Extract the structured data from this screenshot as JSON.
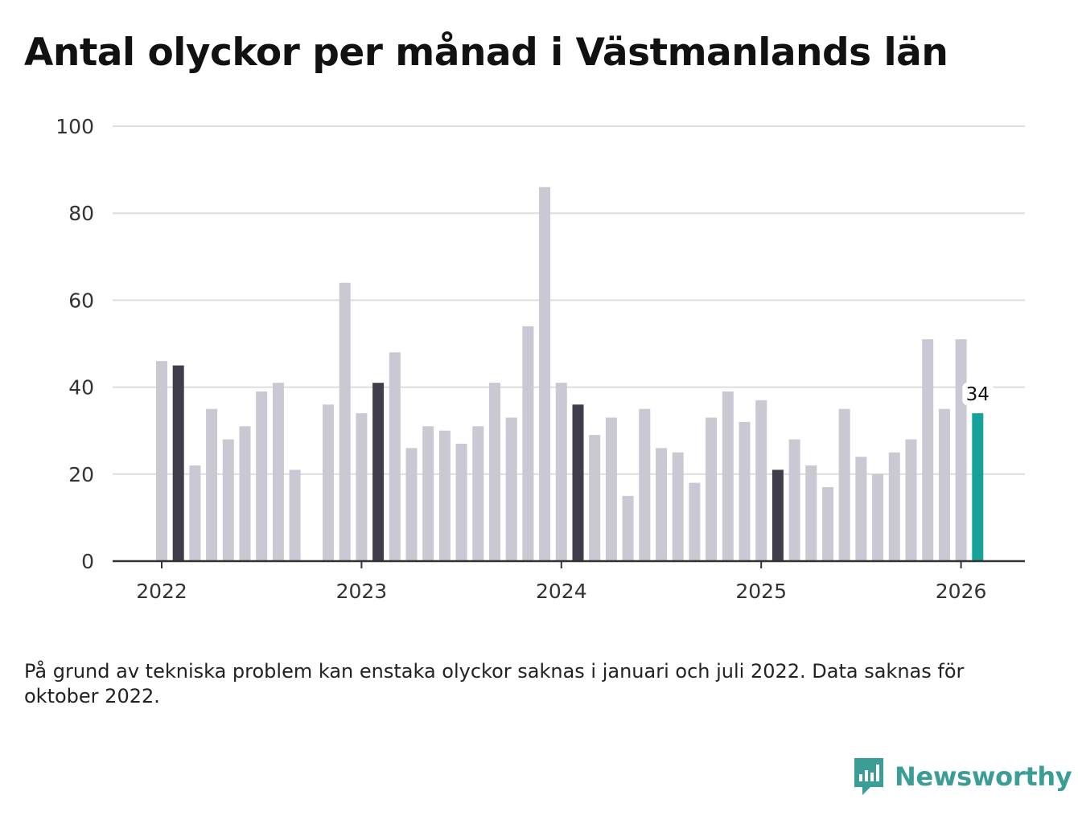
{
  "title": "Antal olyckor per månad i Västmanlands län",
  "footnote": "På grund av tekniska problem kan enstaka olyckor saknas i januari och juli 2022. Data saknas för oktober 2022.",
  "brand": {
    "name": "Newsworthy",
    "color": "#3a9e96",
    "icon": "newsworthy-logo-icon"
  },
  "colors": {
    "default": "#c9c8d3",
    "same_month": "#3f3e4a",
    "latest": "#16a19b",
    "grid": "#dddddd",
    "axis": "#333333"
  },
  "chart_data": {
    "type": "bar",
    "title": "Antal olyckor per månad i Västmanlands län",
    "xlabel": "",
    "ylabel": "",
    "ylim": [
      0,
      100
    ],
    "yticks": [
      0,
      20,
      40,
      60,
      80,
      100
    ],
    "grid": true,
    "x_tick_labels": [
      {
        "label": "2022",
        "at_index": 0
      },
      {
        "label": "2023",
        "at_index": 12
      },
      {
        "label": "2024",
        "at_index": 24
      },
      {
        "label": "2025",
        "at_index": 36
      },
      {
        "label": "2026",
        "at_index": 48
      }
    ],
    "categories": [
      "2022-01",
      "2022-02",
      "2022-03",
      "2022-04",
      "2022-05",
      "2022-06",
      "2022-07",
      "2022-08",
      "2022-09",
      "2022-10",
      "2022-11",
      "2022-12",
      "2023-01",
      "2023-02",
      "2023-03",
      "2023-04",
      "2023-05",
      "2023-06",
      "2023-07",
      "2023-08",
      "2023-09",
      "2023-10",
      "2023-11",
      "2023-12",
      "2024-01",
      "2024-02",
      "2024-03",
      "2024-04",
      "2024-05",
      "2024-06",
      "2024-07",
      "2024-08",
      "2024-09",
      "2024-10",
      "2024-11",
      "2024-12",
      "2025-01",
      "2025-02",
      "2025-03",
      "2025-04",
      "2025-05",
      "2025-06",
      "2025-07",
      "2025-08",
      "2025-09",
      "2025-10",
      "2025-11",
      "2025-12",
      "2026-01",
      "2026-02"
    ],
    "values": [
      46,
      45,
      22,
      35,
      28,
      31,
      39,
      41,
      21,
      null,
      36,
      64,
      34,
      41,
      48,
      26,
      31,
      30,
      27,
      31,
      41,
      33,
      54,
      86,
      41,
      36,
      29,
      33,
      15,
      35,
      26,
      25,
      18,
      33,
      39,
      32,
      37,
      21,
      28,
      22,
      17,
      35,
      24,
      20,
      25,
      28,
      51,
      35,
      51,
      34
    ],
    "highlight_same_month": [
      "2022-02",
      "2023-02",
      "2024-02",
      "2025-02"
    ],
    "latest": "2026-02",
    "annotations": [
      {
        "category": "2026-02",
        "text": "34"
      }
    ]
  }
}
